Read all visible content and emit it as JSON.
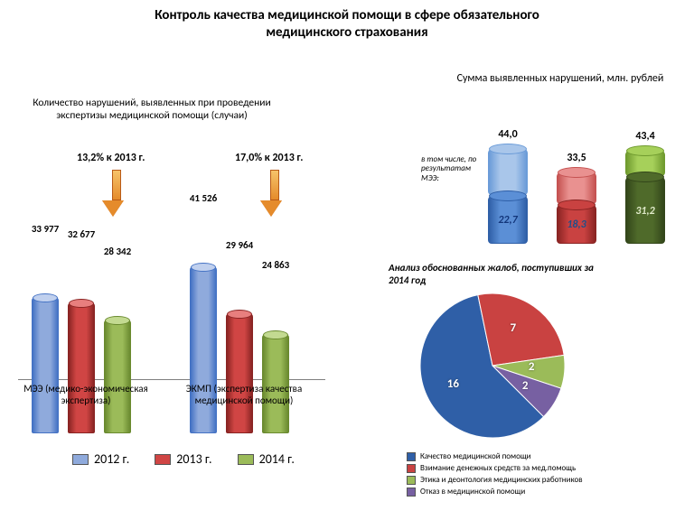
{
  "title_line1": "Контроль качества медицинской помощи в сфере обязательного",
  "title_line2": "медицинского страхования",
  "left": {
    "subtitle": "Количество нарушений, выявленных при проведении экспертизы медицинской помощи (случаи)",
    "ymax": 45000,
    "groups": [
      {
        "axis": "МЭЭ (медико-экономическая экспертиза)",
        "bars": [
          {
            "value": 33977,
            "label": "33 977",
            "fill": "#8faadc",
            "stroke": "#4472c4",
            "cap": "#c0d0ee"
          },
          {
            "value": 32677,
            "label": "32 677",
            "fill": "#d04544",
            "stroke": "#8a2423",
            "cap": "#e87f7e"
          },
          {
            "value": 28342,
            "label": "28 342",
            "fill": "#9bbb59",
            "stroke": "#6a8a2f",
            "cap": "#c3da91"
          }
        ],
        "pct": "13,2% к 2013 г."
      },
      {
        "axis": "ЭКМП (экспертиза качества медицинской помощи)",
        "bars": [
          {
            "value": 41526,
            "label": "41 526",
            "fill": "#8faadc",
            "stroke": "#4472c4",
            "cap": "#c0d0ee"
          },
          {
            "value": 29964,
            "label": "29 964",
            "fill": "#d04544",
            "stroke": "#8a2423",
            "cap": "#e87f7e"
          },
          {
            "value": 24863,
            "label": "24 863",
            "fill": "#9bbb59",
            "stroke": "#6a8a2f",
            "cap": "#c3da91"
          }
        ],
        "pct": "17,0% к 2013 г."
      }
    ],
    "legend": [
      {
        "label": "2012 г.",
        "color": "#8faadc"
      },
      {
        "label": "2013 г.",
        "color": "#d04544"
      },
      {
        "label": "2014 г.",
        "color": "#9bbb59"
      }
    ]
  },
  "right_bars": {
    "title": "Сумма выявленных нарушений, млн. рублей",
    "include_note": "в том числе, по результатам МЭЭ:",
    "ymax": 50,
    "cyls": [
      {
        "total": 44.0,
        "total_label": "44,0",
        "inner": 22.7,
        "inner_label": "22,7",
        "outer_fill": "#a9c6ea",
        "outer_stroke": "#6a9bd8",
        "inner_fill": "#5b8fd6",
        "inner_stroke": "#2f5fa7",
        "inner_text": "#12357a"
      },
      {
        "total": 33.5,
        "total_label": "33,5",
        "inner": 18.3,
        "inner_label": "18,3",
        "outer_fill": "#e99190",
        "outer_stroke": "#c55251",
        "inner_fill": "#c94241",
        "inner_stroke": "#8a2423",
        "inner_text": "#1e4f8a"
      },
      {
        "total": 43.4,
        "total_label": "43,4",
        "inner": 31.2,
        "inner_label": "31,2",
        "outer_fill": "#a6d05a",
        "outer_stroke": "#6f9a2e",
        "inner_fill": "#4f6a2a",
        "inner_stroke": "#33461a",
        "inner_text": "#dfe9c9"
      }
    ]
  },
  "pie": {
    "title": "Анализ обоснованных жалоб, поступивших за 2014 год",
    "slices": [
      {
        "label": "Качество медицинской помощи",
        "value": 16,
        "color": "#2f5fa7"
      },
      {
        "label": "Взимание денежных средств за мед.помощь",
        "value": 7,
        "color": "#c94241"
      },
      {
        "label": "Этика и деонтология медицинских работников",
        "value": 2,
        "color": "#9bbb59"
      },
      {
        "label": "Отказ в медицинской помощи",
        "value": 2,
        "color": "#7760a2"
      }
    ]
  }
}
